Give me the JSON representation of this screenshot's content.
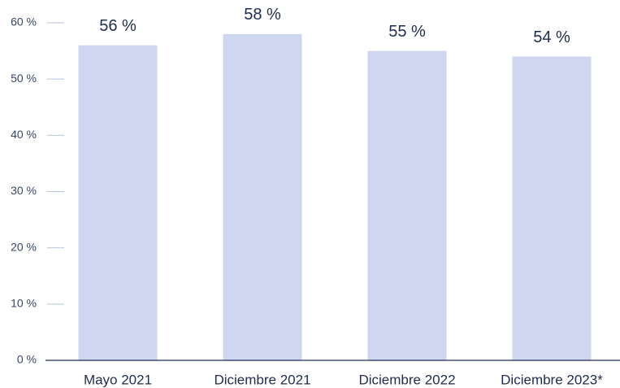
{
  "chart_data": {
    "type": "bar",
    "categories": [
      "Mayo 2021",
      "Diciembre 2021",
      "Diciembre 2022",
      "Diciembre 2023*"
    ],
    "values": [
      56,
      58,
      55,
      54
    ],
    "value_labels": [
      "56 %",
      "58 %",
      "55 %",
      "54 %"
    ],
    "color": "#cfd6ef",
    "ylim": [
      0,
      60
    ],
    "yticks": [
      {
        "value": 0,
        "label": "0 %"
      },
      {
        "value": 10,
        "label": "10 %"
      },
      {
        "value": 20,
        "label": "20 %"
      },
      {
        "value": 30,
        "label": "30 %"
      },
      {
        "value": 40,
        "label": "40 %"
      },
      {
        "value": 50,
        "label": "50 %"
      },
      {
        "value": 60,
        "label": "60 %"
      }
    ],
    "grid": false
  }
}
